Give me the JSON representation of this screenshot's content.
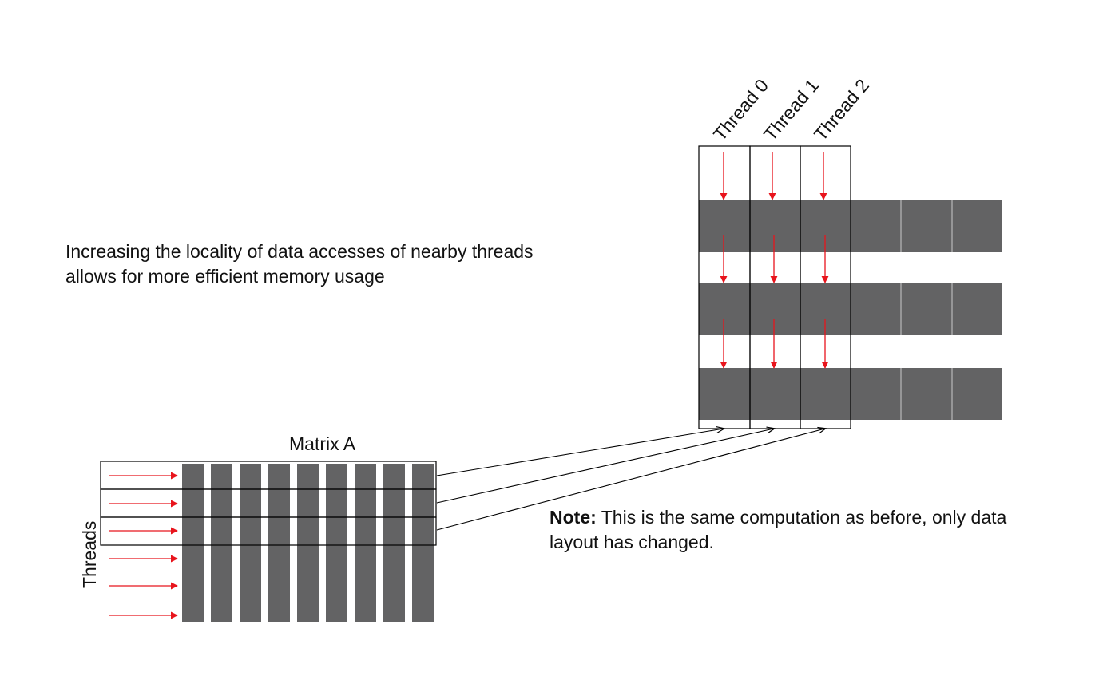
{
  "caption": "Increasing the locality of data accesses of nearby threads allows for more efficient memory usage",
  "note": {
    "label": "Note:",
    "text": " This is the same computation as before, only data layout has changed."
  },
  "matrix": {
    "title": "Matrix A",
    "threads_axis_label": "Threads"
  },
  "thread_columns": [
    "Thread 0",
    "Thread 1",
    "Thread 2"
  ],
  "colors": {
    "block_fill": "#636364",
    "arrow_red": "#e8141c",
    "outline": "#000000"
  }
}
